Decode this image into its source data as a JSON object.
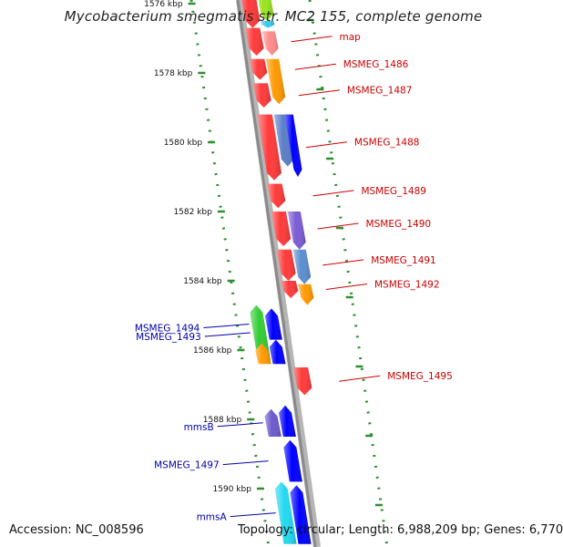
{
  "title": "Mycobacterium smegmatis str. MC2 155, complete genome",
  "accession_text": "Accession: NC_008596",
  "summary": {
    "topology": "Topology: circular;",
    "length": "Length: 6,988,209 bp;",
    "genes": "Genes: 6,770"
  },
  "colors": {
    "backbone": "#8a8a8a",
    "tick": "#2f8f2f",
    "forward_label": "#cc0000",
    "reverse_label": "#0000aa"
  },
  "ruler": {
    "unit": "kbp",
    "ticks": [
      {
        "kbp": 1576,
        "label": "1576 kbp"
      },
      {
        "kbp": 1578,
        "label": "1578 kbp"
      },
      {
        "kbp": 1580,
        "label": "1580 kbp"
      },
      {
        "kbp": 1582,
        "label": "1582 kbp"
      },
      {
        "kbp": 1584,
        "label": "1584 kbp"
      },
      {
        "kbp": 1586,
        "label": "1586 kbp"
      },
      {
        "kbp": 1588,
        "label": "1588 kbp"
      },
      {
        "kbp": 1590,
        "label": "1590 kbp"
      }
    ]
  },
  "features": {
    "forward": [
      {
        "label": "",
        "start": 1575.4,
        "end": 1576.7,
        "color": "#ff3a3a"
      },
      {
        "label": "map",
        "start": 1576.7,
        "end": 1577.5,
        "color": "#ff3a3a"
      },
      {
        "label": "MSMEG_1486",
        "start": 1577.6,
        "end": 1578.2,
        "color": "#ff3a3a"
      },
      {
        "label": "MSMEG_1487",
        "start": 1578.3,
        "end": 1579.0,
        "color": "#ff3a3a"
      },
      {
        "label": "MSMEG_1488",
        "start": 1579.2,
        "end": 1581.1,
        "color": "#ff3a3a"
      },
      {
        "label": "MSMEG_1489",
        "start": 1581.2,
        "end": 1581.9,
        "color": "#ff3a3a"
      },
      {
        "label": "MSMEG_1490",
        "start": 1582.0,
        "end": 1583.0,
        "color": "#ff3a3a"
      },
      {
        "label": "MSMEG_1491",
        "start": 1583.1,
        "end": 1584.0,
        "color": "#ff3a3a"
      },
      {
        "label": "MSMEG_1492",
        "start": 1584.0,
        "end": 1584.5,
        "color": "#ff3a3a"
      },
      {
        "label": "MSMEG_1495",
        "start": 1586.5,
        "end": 1587.3,
        "color": "#ff3a3a"
      }
    ],
    "mid": [
      {
        "label": "",
        "start": 1575.4,
        "end": 1576.5,
        "color": "#9ae61e"
      },
      {
        "label": "",
        "start": 1576.5,
        "end": 1576.7,
        "color": "#38c8f0"
      },
      {
        "label": "",
        "start": 1576.8,
        "end": 1577.5,
        "color": "#ff8c8c"
      },
      {
        "label": "",
        "start": 1577.6,
        "end": 1578.9,
        "color": "#ff9900"
      },
      {
        "label": "",
        "start": 1579.2,
        "end": 1580.7,
        "color": "#5b7ec8"
      },
      {
        "label": "",
        "start": 1582.0,
        "end": 1583.1,
        "color": "#7a5cd6"
      },
      {
        "label": "",
        "start": 1583.1,
        "end": 1584.1,
        "color": "#5b8fd0"
      },
      {
        "label": "",
        "start": 1584.1,
        "end": 1584.7,
        "color": "#ff9900"
      }
    ],
    "mid2": [
      {
        "label": "",
        "start": 1579.2,
        "end": 1581.0,
        "color": "#0000ff"
      }
    ],
    "reverse": [
      {
        "label": "MSMEG_1493",
        "start": 1584.7,
        "end": 1586.3,
        "color": "#33cc33"
      },
      {
        "label": "",
        "start": 1585.8,
        "end": 1586.4,
        "color": "#ff9900"
      },
      {
        "label": "MSMEG_1494",
        "start": 1584.8,
        "end": 1585.7,
        "color": "#0000ff"
      },
      {
        "label": "",
        "start": 1585.7,
        "end": 1586.4,
        "color": "#0000ff"
      },
      {
        "label": "mmsB",
        "start": 1587.7,
        "end": 1588.5,
        "color": "#6a5acd"
      },
      {
        "label": "",
        "start": 1587.6,
        "end": 1588.5,
        "color": "#0000ff"
      },
      {
        "label": "MSMEG_1497",
        "start": 1588.6,
        "end": 1589.8,
        "color": "#0000ff"
      },
      {
        "label": "mmsA",
        "start": 1589.8,
        "end": 1591.6,
        "color": "#22d8f0"
      },
      {
        "label": "",
        "start": 1589.9,
        "end": 1591.6,
        "color": "#0000ff"
      }
    ]
  }
}
